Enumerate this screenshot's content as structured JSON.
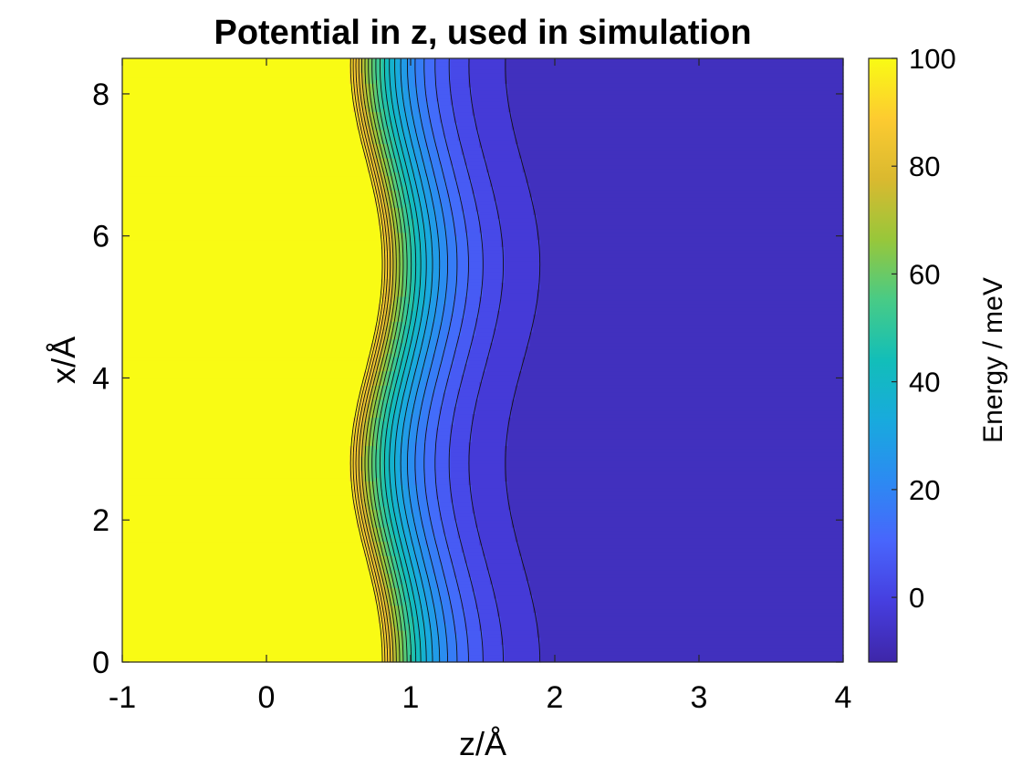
{
  "chart_data": {
    "type": "heatmap",
    "subtype": "filled-contour",
    "title": "Potential in z, used in simulation",
    "xlabel": "z/Å",
    "ylabel": "x/Å",
    "xlim": [
      -1,
      4
    ],
    "ylim": [
      0,
      8.5
    ],
    "x_ticks": [
      -1,
      0,
      1,
      2,
      3,
      4
    ],
    "x_tick_labels": [
      "-1",
      "0",
      "1",
      "2",
      "3",
      "4"
    ],
    "y_ticks": [
      0,
      2,
      4,
      6,
      8
    ],
    "y_tick_labels": [
      "0",
      "2",
      "4",
      "6",
      "8"
    ],
    "colorbar": {
      "label": "Energy / meV",
      "limits": [
        -12,
        100
      ],
      "ticks": [
        0,
        20,
        40,
        60,
        80,
        100
      ],
      "tick_labels": [
        "0",
        "20",
        "40",
        "60",
        "80",
        "100"
      ],
      "colormap": "parula"
    },
    "contour_levels": [
      -10,
      -5,
      0,
      5,
      10,
      15,
      20,
      25,
      30,
      35,
      40,
      45,
      50,
      55,
      60,
      65,
      70,
      75,
      80,
      85,
      90,
      95
    ],
    "potential_model": {
      "x_period": 5.6,
      "minima_x": [
        0,
        2.8,
        5.6,
        8.4
      ],
      "minima_z": 0.8,
      "well_depth_meV": -11
    },
    "grid": false,
    "box": true
  }
}
